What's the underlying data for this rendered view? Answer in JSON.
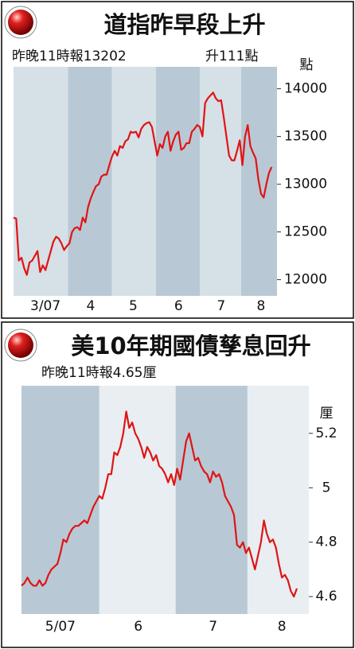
{
  "chart_data": [
    {
      "type": "line",
      "title": "道指昨早段上升",
      "subtitle": "昨晚11時報13202",
      "note": "升111點",
      "y_unit": "點",
      "x": [
        0,
        1,
        2,
        3,
        4,
        5,
        6,
        7,
        8,
        9,
        10,
        11,
        12,
        13,
        14,
        15,
        16,
        17,
        18,
        19,
        20,
        21,
        22,
        23,
        24,
        25,
        26,
        27,
        28,
        29,
        30,
        31,
        32,
        33,
        34,
        35,
        36,
        37,
        38,
        39,
        40,
        41,
        42,
        43,
        44,
        45,
        46,
        47,
        48,
        49,
        50,
        51,
        52,
        53,
        54,
        55,
        56,
        57,
        58,
        59,
        60,
        61,
        62,
        63,
        64,
        65,
        66,
        67,
        68,
        69,
        70,
        71,
        72,
        73,
        74,
        75,
        76,
        77,
        78,
        79,
        80,
        81,
        82,
        83,
        84,
        85,
        86,
        87,
        88,
        89,
        90,
        91,
        92,
        93,
        94,
        95,
        96,
        97
      ],
      "series": [
        {
          "color": "#e01414",
          "values": [
            12650,
            12640,
            12200,
            12230,
            12120,
            12050,
            12180,
            12200,
            12250,
            12300,
            12080,
            12150,
            12100,
            12200,
            12300,
            12400,
            12450,
            12430,
            12380,
            12310,
            12350,
            12380,
            12500,
            12540,
            12550,
            12520,
            12650,
            12600,
            12760,
            12850,
            12920,
            12980,
            13000,
            13080,
            13100,
            13100,
            13200,
            13290,
            13350,
            13300,
            13400,
            13380,
            13450,
            13470,
            13550,
            13540,
            13550,
            13490,
            13580,
            13620,
            13640,
            13650,
            13600,
            13450,
            13300,
            13420,
            13380,
            13500,
            13550,
            13350,
            13450,
            13520,
            13550,
            13360,
            13380,
            13430,
            13430,
            13550,
            13580,
            13620,
            13600,
            13500,
            13850,
            13900,
            13930,
            13960,
            13900,
            13870,
            13880,
            13700,
            13500,
            13300,
            13250,
            13250,
            13350,
            13460,
            13200,
            13500,
            13620,
            13400,
            13330,
            13270,
            13050,
            12900,
            12860,
            13000,
            13120,
            13180
          ]
        }
      ],
      "xlim": [
        0,
        99
      ],
      "xticks": [
        {
          "value": 12,
          "label": "3/07"
        },
        {
          "value": 29,
          "label": "4"
        },
        {
          "value": 45,
          "label": "5"
        },
        {
          "value": 62,
          "label": "6"
        },
        {
          "value": 78,
          "label": "7"
        },
        {
          "value": 93,
          "label": "8"
        }
      ],
      "ylim": [
        11830,
        14230
      ],
      "yticks": [
        12000,
        12500,
        13000,
        13500,
        14000
      ],
      "band_colors": [
        "#d6e0e7",
        "#b8c9d5"
      ]
    },
    {
      "type": "line",
      "title": "美10年期國債孳息回升",
      "subtitle": "昨晚11時報4.65厘",
      "y_unit": "厘",
      "x": [
        0,
        1,
        2,
        3,
        4,
        5,
        6,
        7,
        8,
        9,
        10,
        11,
        12,
        13,
        14,
        15,
        16,
        17,
        18,
        19,
        20,
        21,
        22,
        23,
        24,
        25,
        26,
        27,
        28,
        29,
        30,
        31,
        32,
        33,
        34,
        35,
        36,
        37,
        38,
        39,
        40,
        41,
        42,
        43,
        44,
        45,
        46,
        47,
        48,
        49,
        50,
        51,
        52,
        53,
        54,
        55,
        56,
        57,
        58,
        59,
        60,
        61,
        62,
        63,
        64,
        65,
        66,
        67,
        68,
        69,
        70,
        71,
        72,
        73,
        74,
        75,
        76,
        77,
        78,
        79,
        80,
        81,
        82,
        83,
        84,
        85,
        86,
        87,
        88,
        89,
        90,
        91,
        92
      ],
      "series": [
        {
          "color": "#e01414",
          "values": [
            4.64,
            4.65,
            4.67,
            4.65,
            4.64,
            4.64,
            4.66,
            4.64,
            4.65,
            4.68,
            4.7,
            4.71,
            4.72,
            4.76,
            4.81,
            4.8,
            4.83,
            4.85,
            4.86,
            4.86,
            4.87,
            4.88,
            4.87,
            4.9,
            4.93,
            4.95,
            4.97,
            4.96,
            5.0,
            5.05,
            5.05,
            5.13,
            5.12,
            5.15,
            5.2,
            5.28,
            5.22,
            5.24,
            5.2,
            5.18,
            5.15,
            5.11,
            5.15,
            5.13,
            5.1,
            5.12,
            5.08,
            5.07,
            5.05,
            5.02,
            5.05,
            5.01,
            5.07,
            5.03,
            5.1,
            5.17,
            5.2,
            5.15,
            5.1,
            5.11,
            5.08,
            5.06,
            5.05,
            5.02,
            5.06,
            5.04,
            5.05,
            5.02,
            4.97,
            4.95,
            4.93,
            4.9,
            4.79,
            4.78,
            4.8,
            4.76,
            4.78,
            4.74,
            4.7,
            4.75,
            4.8,
            4.88,
            4.83,
            4.8,
            4.81,
            4.78,
            4.72,
            4.67,
            4.68,
            4.66,
            4.62,
            4.6,
            4.63
          ]
        }
      ],
      "xlim": [
        0,
        96
      ],
      "xticks": [
        {
          "value": 13,
          "label": "5/07"
        },
        {
          "value": 39,
          "label": "6"
        },
        {
          "value": 64,
          "label": "7"
        },
        {
          "value": 87,
          "label": "8"
        }
      ],
      "ylim": [
        4.536,
        5.375
      ],
      "yticks": [
        4.6,
        4.8,
        5.0,
        5.2
      ],
      "band_colors": [
        "#b8c9d5",
        "#e8eef2"
      ]
    }
  ]
}
